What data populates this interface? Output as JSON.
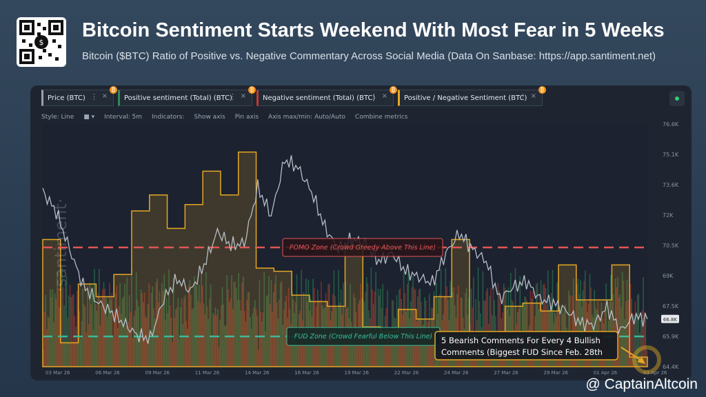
{
  "header": {
    "title": "Bitcoin Sentiment Starts Weekend With Most Fear in 5 Weeks",
    "subtitle": "Bitcoin ($BTC) Ratio of Positive vs. Negative Commentary Across Social Media (Data On Sanbase: https://app.santiment.net)"
  },
  "metrics": [
    {
      "label": "Price (BTC)",
      "color": "#9aa3ad"
    },
    {
      "label": "Positive sentiment (Total) (BTC)",
      "color": "#2e8b57"
    },
    {
      "label": "Negative sentiment (Total) (BTC)",
      "color": "#c0392b"
    },
    {
      "label": "Positive / Negative Sentiment (BTC)",
      "color": "#e5a823"
    }
  ],
  "options": {
    "style": "Style: Line",
    "interval": "Interval: 5m",
    "indicators": "Indicators:",
    "show_axis": "Show axis",
    "pin_axis": "Pin axis",
    "axis_range": "Axis max/min: Auto/Auto",
    "combine": "Combine metrics"
  },
  "watermark": "·santiment·",
  "chart_data": {
    "type": "line",
    "x_ticks": [
      "03 Mar 26",
      "06 Mar 26",
      "09 Mar 26",
      "11 Mar 26",
      "14 Mar 26",
      "16 Mar 26",
      "19 Mar 26",
      "22 Mar 26",
      "24 Mar 26",
      "27 Mar 26",
      "29 Mar 26",
      "01 Apr 26",
      "03 Apr 26"
    ],
    "y_ticks": [
      "76.6K",
      "75.1K",
      "73.6K",
      "72K",
      "70.5K",
      "69K",
      "67.5K",
      "65.9K",
      "64.4K"
    ],
    "ylim": [
      64400,
      76600
    ],
    "current_price_label": "66.8K",
    "series": [
      {
        "name": "Price (BTC)",
        "values": [
          73200,
          72200,
          70300,
          68500,
          67700,
          67200,
          66600,
          66000,
          65800,
          67800,
          68800,
          68200,
          69500,
          71200,
          70500,
          70600,
          73400,
          72000,
          74800,
          74400,
          73200,
          71400,
          70300,
          70800,
          70600,
          69700,
          70100,
          69200,
          68900,
          68600,
          70100,
          71100,
          70300,
          69700,
          67800,
          68400,
          68700,
          67800,
          67600,
          67200,
          66600,
          66500,
          67400,
          66200,
          66900,
          66800
        ]
      },
      {
        "name": "Positive / Negative Sentiment (BTC)",
        "steps": [
          1.5,
          0.85,
          1.22,
          1.14,
          1.28,
          1.68,
          1.78,
          1.57,
          1.72,
          1.93,
          1.78,
          2.05,
          1.32,
          1.3,
          1.15,
          1.11,
          1.08,
          1.46,
          0.95,
          0.92,
          1.06,
          1.0,
          1.14,
          1.5,
          0.9,
          0.92,
          1.08,
          1.1,
          1.05,
          1.34,
          1.12,
          1.12,
          1.34,
          0.76
        ],
        "zones": {
          "fomo": 1.45,
          "fud": 0.89
        }
      }
    ],
    "annotations": [
      {
        "text": "FOMO Zone (Crowd Greedy Above This Line)",
        "color": "#e25555"
      },
      {
        "text": "FUD Zone (Crowd Fearful Below This Line)",
        "color": "#3cb99a"
      },
      {
        "text_line1": "5 Bearish Comments For Every 4 Bullish",
        "text_line2": "Comments (Biggest FUD Since Feb. 28th",
        "color": "#e5a823"
      }
    ]
  },
  "brand": "@ CaptainAltcoin"
}
